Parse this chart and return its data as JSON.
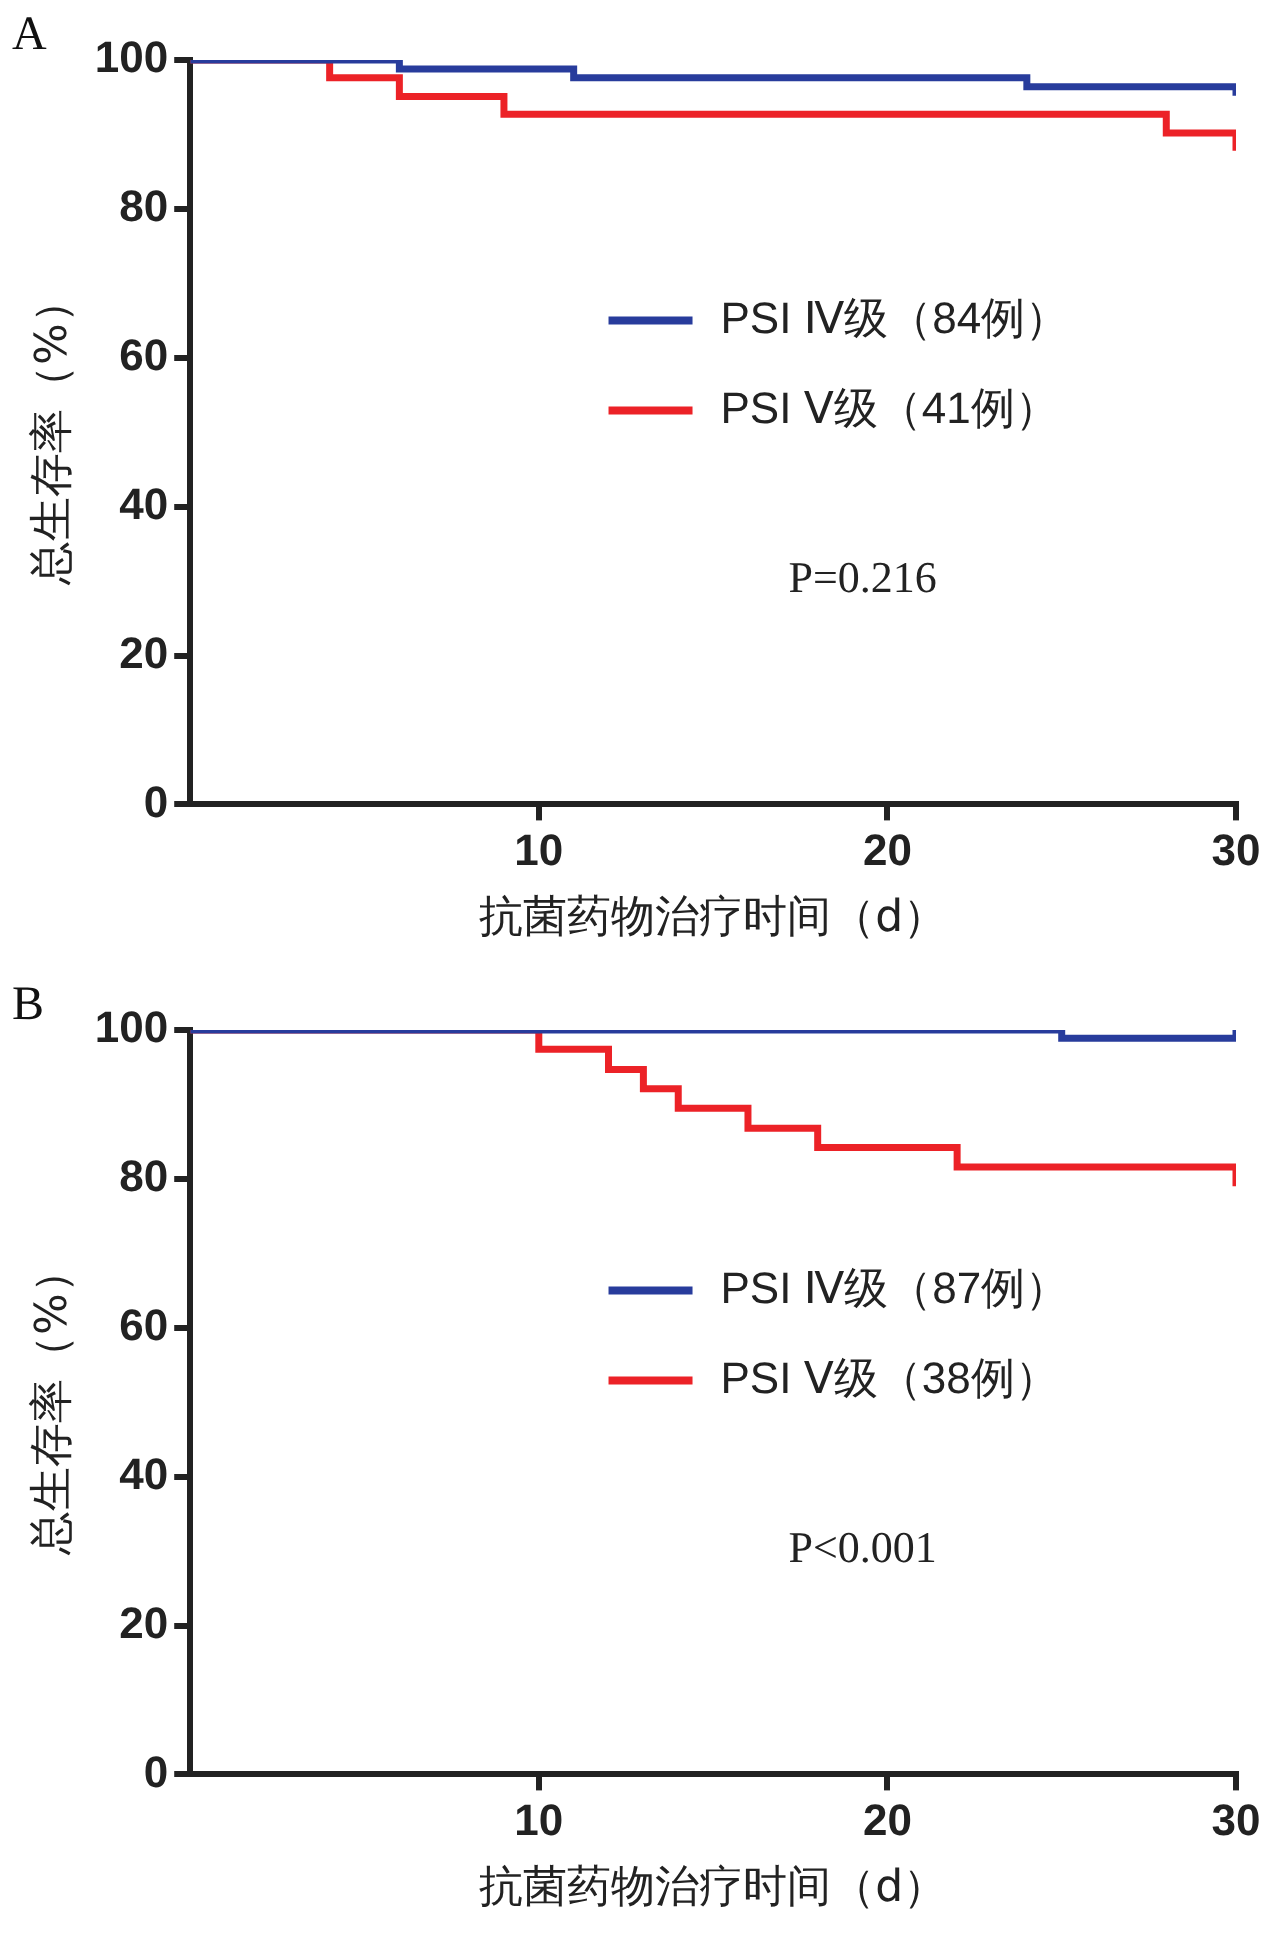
{
  "chart_data": [
    {
      "type": "step",
      "title": "A",
      "xlabel": "抗菌药物治疗时间（d）",
      "ylabel": "总生存率（%）",
      "xlim": [
        0,
        30
      ],
      "xticks": [
        10,
        20,
        30
      ],
      "ylim": [
        0,
        100
      ],
      "yticks": [
        0,
        20,
        40,
        60,
        80,
        100
      ],
      "grid": false,
      "legend": "right",
      "annotations": [
        "P=0.216"
      ],
      "series": [
        {
          "name": "PSI Ⅳ级（84例）",
          "color": "#283c9c",
          "x": [
            0,
            6,
            11,
            24,
            30,
            30
          ],
          "values": [
            100,
            98.8,
            97.6,
            96.4,
            96.4,
            95.2
          ]
        },
        {
          "name": "PSI Ⅴ级（41例）",
          "color": "#ec2227",
          "x": [
            0,
            4,
            6,
            9,
            28,
            30,
            30
          ],
          "values": [
            100,
            97.6,
            95.1,
            92.7,
            90.2,
            90.2,
            87.8
          ]
        }
      ]
    },
    {
      "type": "step",
      "title": "B",
      "xlabel": "抗菌药物治疗时间（d）",
      "ylabel": "总生存率（%）",
      "xlim": [
        0,
        30
      ],
      "xticks": [
        10,
        20,
        30
      ],
      "ylim": [
        0,
        100
      ],
      "yticks": [
        0,
        20,
        40,
        60,
        80,
        100
      ],
      "grid": false,
      "legend": "right",
      "annotations": [
        "P<0.001"
      ],
      "series": [
        {
          "name": "PSI Ⅳ级（87例）",
          "color": "#283c9c",
          "x": [
            0,
            25,
            30,
            30
          ],
          "values": [
            100,
            98.9,
            98.9,
            100
          ]
        },
        {
          "name": "PSI Ⅴ级（38例）",
          "color": "#ec2227",
          "x": [
            0,
            10,
            12,
            13,
            14,
            16,
            18,
            22,
            30,
            30
          ],
          "values": [
            100,
            97.4,
            94.7,
            92.1,
            89.5,
            86.8,
            84.2,
            81.6,
            81.6,
            79
          ]
        }
      ]
    }
  ]
}
